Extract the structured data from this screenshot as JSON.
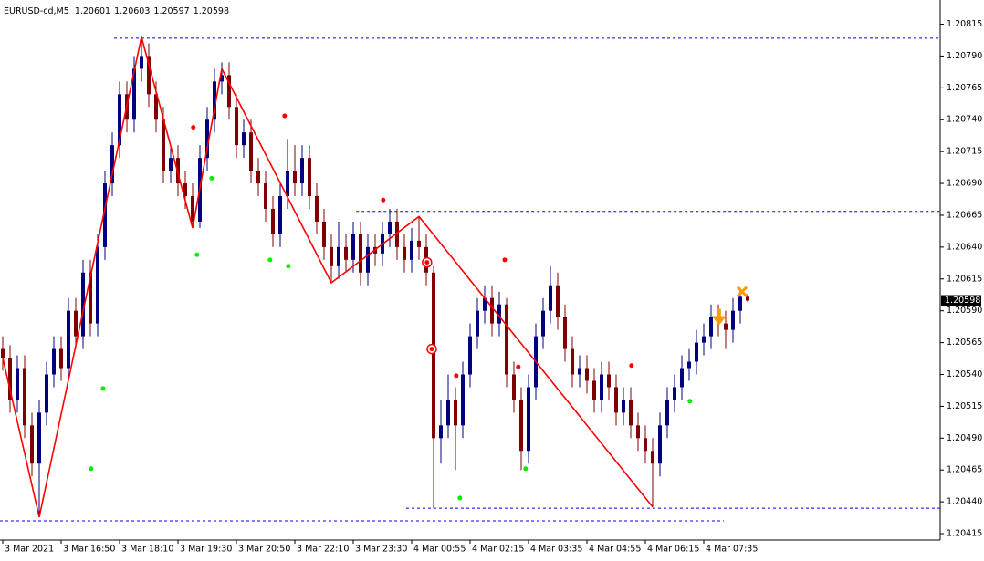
{
  "chart_data": {
    "type": "candlestick",
    "title": "EURUSD-cd,M5",
    "open": [
      1.2056,
      1.20553,
      1.2052,
      1.20545,
      1.205,
      1.2047,
      1.2051,
      1.2054,
      1.2056,
      1.20545,
      1.2059,
      1.2057,
      1.2062,
      1.2058,
      1.2064,
      1.2069,
      1.2072,
      1.2076,
      1.2074,
      1.2078,
      1.2079,
      1.2076,
      1.2074,
      1.207,
      1.2071,
      1.2069,
      1.2068,
      1.2066,
      1.2071,
      1.2074,
      1.2077,
      1.20775,
      1.2075,
      1.2072,
      1.2073,
      1.207,
      1.2069,
      1.2067,
      1.2065,
      1.2068,
      1.207,
      1.2069,
      1.2071,
      1.2068,
      1.2066,
      1.2064,
      1.20625,
      1.2064,
      1.2063,
      1.2065,
      1.2062,
      1.2064,
      1.20635,
      1.2065,
      1.2066,
      1.2064,
      1.2063,
      1.20645,
      1.2064,
      1.2062,
      1.2049,
      1.205,
      1.2052,
      1.205,
      1.2054,
      1.2057,
      1.2059,
      1.206,
      1.2058,
      1.20595,
      1.2054,
      1.2052,
      1.2048,
      1.2053,
      1.2057,
      1.2059,
      1.2061,
      1.20585,
      1.2056,
      1.2054,
      1.20545,
      1.20535,
      1.2052,
      1.2054,
      1.2053,
      1.2051,
      1.2052,
      1.205,
      1.2049,
      1.2048,
      1.2047,
      1.205,
      1.2052,
      1.2053,
      1.20545,
      1.2055,
      1.20565,
      1.2057,
      1.20585,
      1.2058,
      1.20575,
      1.2059,
      1.20601
    ],
    "high": [
      1.2057,
      1.20563,
      1.20555,
      1.20555,
      1.2051,
      1.2052,
      1.2055,
      1.2057,
      1.2057,
      1.206,
      1.206,
      1.2063,
      1.2063,
      1.2065,
      1.207,
      1.2073,
      1.2077,
      1.2077,
      1.2079,
      1.20805,
      1.208,
      1.2077,
      1.2075,
      1.2072,
      1.2072,
      1.207,
      1.2069,
      1.2072,
      1.2075,
      1.2078,
      1.20785,
      1.20785,
      1.2076,
      1.2074,
      1.2074,
      1.2071,
      1.207,
      1.2068,
      1.2069,
      1.20725,
      1.2072,
      1.2072,
      1.2072,
      1.2069,
      1.2067,
      1.2065,
      1.2066,
      1.2065,
      1.2066,
      1.2066,
      1.2065,
      1.2065,
      1.2066,
      1.2067,
      1.2067,
      1.2065,
      1.20655,
      1.20664,
      1.2065,
      1.20625,
      1.2052,
      1.2054,
      1.2053,
      1.2055,
      1.2058,
      1.206,
      1.2061,
      1.2061,
      1.20605,
      1.206,
      1.2055,
      1.2053,
      1.2054,
      1.2058,
      1.206,
      1.20625,
      1.2062,
      1.20595,
      1.2057,
      1.20555,
      1.20555,
      1.20545,
      1.2055,
      1.2055,
      1.2054,
      1.2053,
      1.2053,
      1.2051,
      1.205,
      1.2049,
      1.2051,
      1.2053,
      1.2054,
      1.20555,
      1.2056,
      1.20575,
      1.2058,
      1.20595,
      1.20595,
      1.2059,
      1.206,
      1.20608,
      1.20603
    ],
    "low": [
      1.20543,
      1.2051,
      1.2051,
      1.2049,
      1.2046,
      1.20428,
      1.205,
      1.2053,
      1.20535,
      1.20535,
      1.2056,
      1.2056,
      1.2057,
      1.2057,
      1.2063,
      1.2068,
      1.2071,
      1.2073,
      1.2073,
      1.2077,
      1.2075,
      1.2073,
      1.2069,
      1.2069,
      1.2068,
      1.2067,
      1.20655,
      1.20655,
      1.207,
      1.2073,
      1.2076,
      1.2074,
      1.2071,
      1.2071,
      1.2069,
      1.2068,
      1.2066,
      1.2064,
      1.2064,
      1.2067,
      1.2068,
      1.2068,
      1.2067,
      1.2065,
      1.2063,
      1.20612,
      1.20615,
      1.2062,
      1.2062,
      1.2061,
      1.2061,
      1.20625,
      1.20625,
      1.2064,
      1.2063,
      1.2062,
      1.2062,
      1.2063,
      1.2061,
      1.20435,
      1.2047,
      1.2049,
      1.20465,
      1.2049,
      1.2053,
      1.2056,
      1.2058,
      1.2057,
      1.2057,
      1.2053,
      1.2051,
      1.20465,
      1.2047,
      1.2052,
      1.2056,
      1.2058,
      1.20575,
      1.2055,
      1.2053,
      1.2053,
      1.20525,
      1.2051,
      1.2051,
      1.2052,
      1.205,
      1.205,
      1.2049,
      1.2048,
      1.2047,
      1.20436,
      1.2046,
      1.2049,
      1.2051,
      1.2052,
      1.20535,
      1.2054,
      1.20555,
      1.2056,
      1.2057,
      1.2056,
      1.20565,
      1.2058,
      1.20597
    ],
    "close": [
      1.20553,
      1.2052,
      1.20545,
      1.205,
      1.2047,
      1.2051,
      1.2054,
      1.2056,
      1.20545,
      1.2059,
      1.2057,
      1.2062,
      1.2058,
      1.2064,
      1.2069,
      1.2072,
      1.2076,
      1.2074,
      1.2078,
      1.2079,
      1.2076,
      1.2074,
      1.207,
      1.2071,
      1.2069,
      1.2068,
      1.2066,
      1.2071,
      1.2074,
      1.2077,
      1.20775,
      1.2075,
      1.2072,
      1.2073,
      1.207,
      1.2069,
      1.2067,
      1.2065,
      1.2068,
      1.207,
      1.2069,
      1.2071,
      1.2068,
      1.2066,
      1.2064,
      1.20625,
      1.2064,
      1.2063,
      1.2065,
      1.2062,
      1.2064,
      1.20635,
      1.2065,
      1.2066,
      1.2064,
      1.2063,
      1.20645,
      1.2064,
      1.2062,
      1.2049,
      1.205,
      1.2052,
      1.205,
      1.2054,
      1.2057,
      1.2059,
      1.206,
      1.2058,
      1.20595,
      1.2054,
      1.2052,
      1.2048,
      1.2053,
      1.2057,
      1.2059,
      1.2061,
      1.20585,
      1.2056,
      1.2054,
      1.20545,
      1.20535,
      1.2052,
      1.2054,
      1.2053,
      1.2051,
      1.2052,
      1.205,
      1.2049,
      1.2048,
      1.2047,
      1.205,
      1.2052,
      1.2053,
      1.20545,
      1.2055,
      1.20565,
      1.2057,
      1.20585,
      1.2058,
      1.20575,
      1.2059,
      1.20601,
      1.20598
    ],
    "up_color": "#00007f",
    "down_color": "#7f0000",
    "xlim": [
      -0.375,
      128.375
    ],
    "xticks": [
      {
        "value": 0,
        "label": "3 Mar 2021"
      },
      {
        "value": 8,
        "label": "3 Mar 16:50"
      },
      {
        "value": 16,
        "label": "3 Mar 18:10"
      },
      {
        "value": 24,
        "label": "3 Mar 19:30"
      },
      {
        "value": 32,
        "label": "3 Mar 20:50"
      },
      {
        "value": 40,
        "label": "3 Mar 22:10"
      },
      {
        "value": 48,
        "label": "3 Mar 23:30"
      },
      {
        "value": 56,
        "label": "4 Mar 00:55"
      },
      {
        "value": 64,
        "label": "4 Mar 02:15"
      },
      {
        "value": 72,
        "label": "4 Mar 03:35"
      },
      {
        "value": 80,
        "label": "4 Mar 04:55"
      },
      {
        "value": 88,
        "label": "4 Mar 06:15"
      },
      {
        "value": 96,
        "label": "4 Mar 07:35"
      }
    ],
    "ylim": [
      1.2041,
      1.20834
    ],
    "yticks": [
      {
        "value": 1.20815,
        "label": "1.20815"
      },
      {
        "value": 1.2079,
        "label": "1.20790"
      },
      {
        "value": 1.20765,
        "label": "1.20765"
      },
      {
        "value": 1.2074,
        "label": "1.20740"
      },
      {
        "value": 1.20715,
        "label": "1.20715"
      },
      {
        "value": 1.2069,
        "label": "1.20690"
      },
      {
        "value": 1.20665,
        "label": "1.20665"
      },
      {
        "value": 1.2064,
        "label": "1.20640"
      },
      {
        "value": 1.20615,
        "label": "1.20615"
      },
      {
        "value": 1.2059,
        "label": "1.20590"
      },
      {
        "value": 1.20565,
        "label": "1.20565"
      },
      {
        "value": 1.2054,
        "label": "1.20540"
      },
      {
        "value": 1.20515,
        "label": "1.20515"
      },
      {
        "value": 1.2049,
        "label": "1.20490"
      },
      {
        "value": 1.20465,
        "label": "1.20465"
      },
      {
        "value": 1.2044,
        "label": "1.20440"
      },
      {
        "value": 1.20415,
        "label": "1.20415"
      }
    ],
    "zigzag": {
      "color": "#ff0000",
      "x": [
        0,
        5,
        19,
        26,
        30,
        45,
        57,
        89
      ],
      "values": [
        1.20553,
        1.20428,
        1.20805,
        1.20655,
        1.2078,
        1.20612,
        1.20664,
        1.20436
      ]
    },
    "levels": {
      "color": "#0000ff",
      "items": [
        {
          "value": 1.20804,
          "x": [
            15.25,
            128.375
          ]
        },
        {
          "value": 1.20668,
          "x": [
            48.4,
            128.375
          ]
        },
        {
          "value": 1.20435,
          "x": [
            55.25,
            128.375
          ]
        },
        {
          "value": 1.20425,
          "x": [
            -0.375,
            98.75
          ]
        }
      ]
    },
    "red_dots": {
      "color": "#ff0000",
      "x": [
        26.1,
        38.6,
        52.1,
        62.1,
        68.75,
        70.6,
        86.1
      ],
      "values": [
        1.20734,
        1.20743,
        1.20677,
        1.20539,
        1.2063,
        1.20546,
        1.20547
      ]
    },
    "green_dots": {
      "color": "#00ee00",
      "x": [
        12.1,
        13.75,
        26.6,
        28.6,
        36.6,
        39.1,
        62.6,
        71.6,
        94.1
      ],
      "values": [
        1.20466,
        1.20529,
        1.20634,
        1.20694,
        1.2063,
        1.20625,
        1.20443,
        1.20466,
        1.20519
      ]
    },
    "targets": {
      "color": "#ff0000",
      "x": [
        58.1,
        58.75
      ],
      "values": [
        1.20628,
        1.2056
      ]
    },
    "arrow": {
      "color": "#ff9900",
      "x": 98.1,
      "value": 1.20583
    },
    "cross": {
      "color": "#ff9900",
      "x": 101.25,
      "value": 1.20605
    }
  }
}
